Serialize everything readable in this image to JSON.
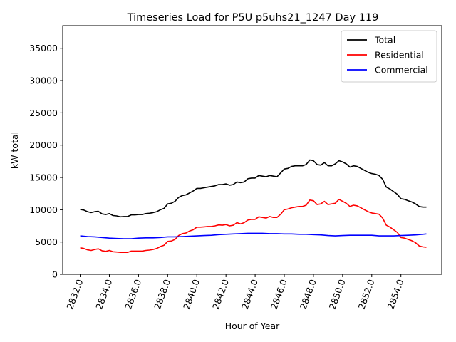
{
  "chart_data": {
    "type": "line",
    "title": "Timeseries Load for P5U p5uhs21_1247  Day 119",
    "xlabel": "Hour of Year",
    "ylabel": "kW total",
    "xlim": [
      2830.8,
      2856.8
    ],
    "ylim": [
      0,
      38500
    ],
    "x_ticks": [
      2832,
      2834,
      2836,
      2838,
      2840,
      2842,
      2844,
      2846,
      2848,
      2850,
      2852,
      2854
    ],
    "x_tick_labels": [
      "2832.0",
      "2834.0",
      "2836.0",
      "2838.0",
      "2840.0",
      "2842.0",
      "2844.0",
      "2846.0",
      "2848.0",
      "2850.0",
      "2852.0",
      "2854.0"
    ],
    "y_ticks": [
      0,
      5000,
      10000,
      15000,
      20000,
      25000,
      30000,
      35000
    ],
    "y_tick_labels": [
      "0",
      "5000",
      "10000",
      "15000",
      "20000",
      "25000",
      "30000",
      "35000"
    ],
    "legend_position": "top-right",
    "series": [
      {
        "name": "Total",
        "color": "#000000",
        "points": [
          [
            2832.0,
            10050
          ],
          [
            2832.25,
            9950
          ],
          [
            2832.5,
            9700
          ],
          [
            2832.75,
            9550
          ],
          [
            2833.0,
            9700
          ],
          [
            2833.25,
            9750
          ],
          [
            2833.5,
            9350
          ],
          [
            2833.75,
            9250
          ],
          [
            2834.0,
            9400
          ],
          [
            2834.25,
            9100
          ],
          [
            2834.5,
            9050
          ],
          [
            2834.75,
            8900
          ],
          [
            2835.0,
            8950
          ],
          [
            2835.25,
            8950
          ],
          [
            2835.5,
            9200
          ],
          [
            2835.75,
            9200
          ],
          [
            2836.0,
            9250
          ],
          [
            2836.25,
            9250
          ],
          [
            2836.5,
            9400
          ],
          [
            2836.75,
            9450
          ],
          [
            2837.0,
            9550
          ],
          [
            2837.25,
            9700
          ],
          [
            2837.5,
            10000
          ],
          [
            2837.75,
            10200
          ],
          [
            2838.0,
            10900
          ],
          [
            2838.25,
            11000
          ],
          [
            2838.5,
            11300
          ],
          [
            2838.75,
            11900
          ],
          [
            2839.0,
            12200
          ],
          [
            2839.25,
            12300
          ],
          [
            2839.5,
            12600
          ],
          [
            2839.75,
            12900
          ],
          [
            2840.0,
            13300
          ],
          [
            2840.25,
            13300
          ],
          [
            2840.5,
            13400
          ],
          [
            2840.75,
            13500
          ],
          [
            2841.0,
            13600
          ],
          [
            2841.25,
            13700
          ],
          [
            2841.5,
            13900
          ],
          [
            2841.75,
            13900
          ],
          [
            2842.0,
            14000
          ],
          [
            2842.25,
            13800
          ],
          [
            2842.5,
            13900
          ],
          [
            2842.75,
            14300
          ],
          [
            2843.0,
            14200
          ],
          [
            2843.25,
            14300
          ],
          [
            2843.5,
            14800
          ],
          [
            2843.75,
            14900
          ],
          [
            2844.0,
            14900
          ],
          [
            2844.25,
            15300
          ],
          [
            2844.5,
            15200
          ],
          [
            2844.75,
            15100
          ],
          [
            2845.0,
            15300
          ],
          [
            2845.25,
            15200
          ],
          [
            2845.5,
            15100
          ],
          [
            2845.75,
            15700
          ],
          [
            2846.0,
            16300
          ],
          [
            2846.25,
            16400
          ],
          [
            2846.5,
            16700
          ],
          [
            2846.75,
            16800
          ],
          [
            2847.0,
            16800
          ],
          [
            2847.25,
            16800
          ],
          [
            2847.5,
            17000
          ],
          [
            2847.75,
            17700
          ],
          [
            2848.0,
            17600
          ],
          [
            2848.25,
            17000
          ],
          [
            2848.5,
            16900
          ],
          [
            2848.75,
            17300
          ],
          [
            2849.0,
            16800
          ],
          [
            2849.25,
            16800
          ],
          [
            2849.5,
            17100
          ],
          [
            2849.75,
            17600
          ],
          [
            2850.0,
            17400
          ],
          [
            2850.25,
            17100
          ],
          [
            2850.5,
            16600
          ],
          [
            2850.75,
            16800
          ],
          [
            2851.0,
            16700
          ],
          [
            2851.25,
            16400
          ],
          [
            2851.5,
            16100
          ],
          [
            2851.75,
            15800
          ],
          [
            2852.0,
            15600
          ],
          [
            2852.25,
            15500
          ],
          [
            2852.5,
            15300
          ],
          [
            2852.75,
            14700
          ],
          [
            2853.0,
            13500
          ],
          [
            2853.25,
            13200
          ],
          [
            2853.5,
            12800
          ],
          [
            2853.75,
            12400
          ],
          [
            2854.0,
            11700
          ],
          [
            2854.25,
            11600
          ],
          [
            2854.5,
            11400
          ],
          [
            2854.75,
            11200
          ],
          [
            2855.0,
            10900
          ],
          [
            2855.25,
            10500
          ],
          [
            2855.5,
            10400
          ],
          [
            2855.75,
            10400
          ]
        ]
      },
      {
        "name": "Residential",
        "color": "#ff0000",
        "points": [
          [
            2832.0,
            4100
          ],
          [
            2832.25,
            4000
          ],
          [
            2832.5,
            3800
          ],
          [
            2832.75,
            3700
          ],
          [
            2833.0,
            3850
          ],
          [
            2833.25,
            3950
          ],
          [
            2833.5,
            3650
          ],
          [
            2833.75,
            3550
          ],
          [
            2834.0,
            3700
          ],
          [
            2834.25,
            3500
          ],
          [
            2834.5,
            3450
          ],
          [
            2834.75,
            3400
          ],
          [
            2835.0,
            3400
          ],
          [
            2835.25,
            3400
          ],
          [
            2835.5,
            3600
          ],
          [
            2835.75,
            3600
          ],
          [
            2836.0,
            3600
          ],
          [
            2836.25,
            3600
          ],
          [
            2836.5,
            3700
          ],
          [
            2836.75,
            3750
          ],
          [
            2837.0,
            3850
          ],
          [
            2837.25,
            4000
          ],
          [
            2837.5,
            4300
          ],
          [
            2837.75,
            4500
          ],
          [
            2838.0,
            5100
          ],
          [
            2838.25,
            5150
          ],
          [
            2838.5,
            5400
          ],
          [
            2838.75,
            6000
          ],
          [
            2839.0,
            6300
          ],
          [
            2839.25,
            6400
          ],
          [
            2839.5,
            6700
          ],
          [
            2839.75,
            6900
          ],
          [
            2840.0,
            7300
          ],
          [
            2840.25,
            7300
          ],
          [
            2840.5,
            7350
          ],
          [
            2840.75,
            7400
          ],
          [
            2841.0,
            7400
          ],
          [
            2841.25,
            7500
          ],
          [
            2841.5,
            7650
          ],
          [
            2841.75,
            7600
          ],
          [
            2842.0,
            7700
          ],
          [
            2842.25,
            7500
          ],
          [
            2842.5,
            7600
          ],
          [
            2842.75,
            8000
          ],
          [
            2843.0,
            7800
          ],
          [
            2843.25,
            8000
          ],
          [
            2843.5,
            8400
          ],
          [
            2843.75,
            8500
          ],
          [
            2844.0,
            8500
          ],
          [
            2844.25,
            8900
          ],
          [
            2844.5,
            8800
          ],
          [
            2844.75,
            8700
          ],
          [
            2845.0,
            8950
          ],
          [
            2845.25,
            8800
          ],
          [
            2845.5,
            8800
          ],
          [
            2845.75,
            9300
          ],
          [
            2846.0,
            10000
          ],
          [
            2846.25,
            10100
          ],
          [
            2846.5,
            10300
          ],
          [
            2846.75,
            10400
          ],
          [
            2847.0,
            10500
          ],
          [
            2847.25,
            10500
          ],
          [
            2847.5,
            10700
          ],
          [
            2847.75,
            11500
          ],
          [
            2848.0,
            11400
          ],
          [
            2848.25,
            10800
          ],
          [
            2848.5,
            10900
          ],
          [
            2848.75,
            11300
          ],
          [
            2849.0,
            10800
          ],
          [
            2849.25,
            10900
          ],
          [
            2849.5,
            11000
          ],
          [
            2849.75,
            11600
          ],
          [
            2850.0,
            11300
          ],
          [
            2850.25,
            11000
          ],
          [
            2850.5,
            10500
          ],
          [
            2850.75,
            10700
          ],
          [
            2851.0,
            10600
          ],
          [
            2851.25,
            10300
          ],
          [
            2851.5,
            10000
          ],
          [
            2851.75,
            9700
          ],
          [
            2852.0,
            9500
          ],
          [
            2852.25,
            9400
          ],
          [
            2852.5,
            9300
          ],
          [
            2852.75,
            8700
          ],
          [
            2853.0,
            7600
          ],
          [
            2853.25,
            7300
          ],
          [
            2853.5,
            6900
          ],
          [
            2853.75,
            6500
          ],
          [
            2854.0,
            5700
          ],
          [
            2854.25,
            5600
          ],
          [
            2854.5,
            5400
          ],
          [
            2854.75,
            5200
          ],
          [
            2855.0,
            4900
          ],
          [
            2855.25,
            4400
          ],
          [
            2855.5,
            4250
          ],
          [
            2855.75,
            4200
          ]
        ]
      },
      {
        "name": "Commercial",
        "color": "#0000ff",
        "points": [
          [
            2832.0,
            5950
          ],
          [
            2832.5,
            5850
          ],
          [
            2833.0,
            5800
          ],
          [
            2833.5,
            5700
          ],
          [
            2834.0,
            5600
          ],
          [
            2834.5,
            5550
          ],
          [
            2835.0,
            5500
          ],
          [
            2835.5,
            5500
          ],
          [
            2836.0,
            5600
          ],
          [
            2836.5,
            5650
          ],
          [
            2837.0,
            5650
          ],
          [
            2837.5,
            5700
          ],
          [
            2838.0,
            5800
          ],
          [
            2838.5,
            5800
          ],
          [
            2839.0,
            5850
          ],
          [
            2839.5,
            5900
          ],
          [
            2840.0,
            5950
          ],
          [
            2840.5,
            6000
          ],
          [
            2841.0,
            6050
          ],
          [
            2841.5,
            6150
          ],
          [
            2842.0,
            6200
          ],
          [
            2842.5,
            6250
          ],
          [
            2843.0,
            6300
          ],
          [
            2843.5,
            6350
          ],
          [
            2844.0,
            6350
          ],
          [
            2844.5,
            6350
          ],
          [
            2845.0,
            6300
          ],
          [
            2845.5,
            6300
          ],
          [
            2846.0,
            6250
          ],
          [
            2846.5,
            6250
          ],
          [
            2847.0,
            6200
          ],
          [
            2847.5,
            6200
          ],
          [
            2848.0,
            6150
          ],
          [
            2848.5,
            6100
          ],
          [
            2849.0,
            6000
          ],
          [
            2849.5,
            5950
          ],
          [
            2850.0,
            6000
          ],
          [
            2850.5,
            6050
          ],
          [
            2851.0,
            6050
          ],
          [
            2851.5,
            6050
          ],
          [
            2852.0,
            6050
          ],
          [
            2852.5,
            5950
          ],
          [
            2853.0,
            5950
          ],
          [
            2853.5,
            5950
          ],
          [
            2854.0,
            6000
          ],
          [
            2854.5,
            6050
          ],
          [
            2855.0,
            6100
          ],
          [
            2855.5,
            6200
          ],
          [
            2855.75,
            6250
          ]
        ]
      }
    ]
  }
}
